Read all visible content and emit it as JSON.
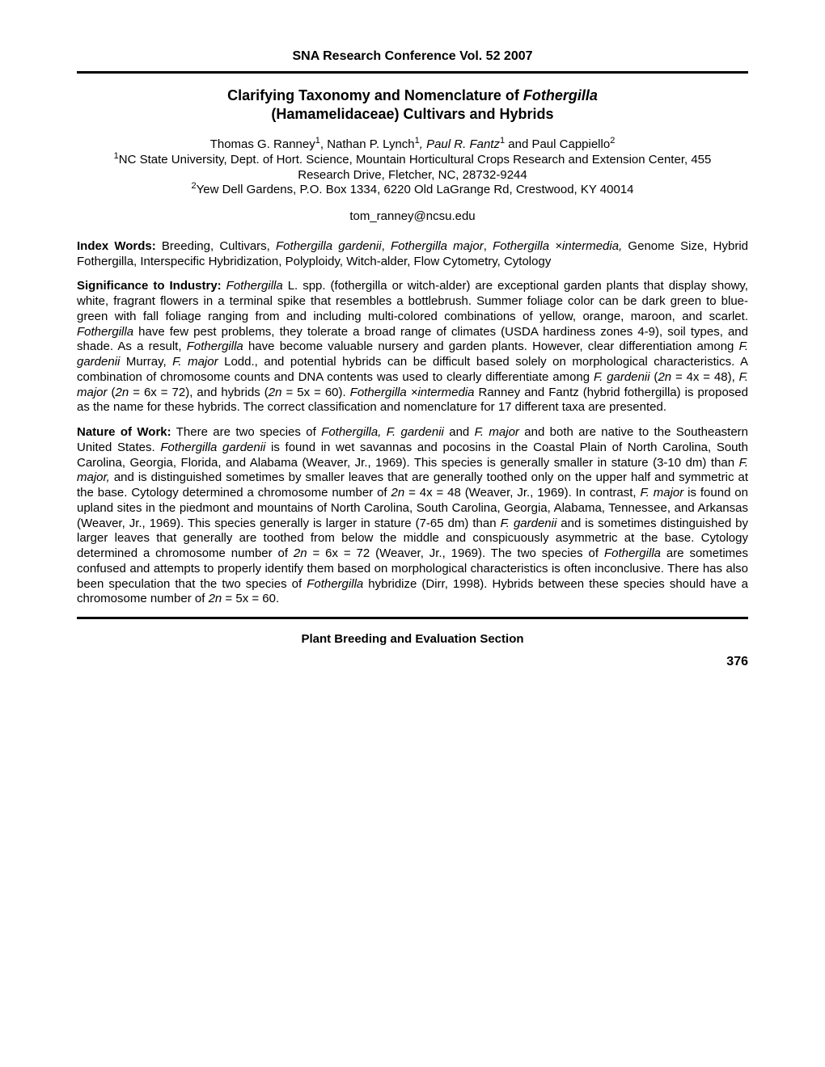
{
  "header": "SNA Research Conference Vol. 52 2007",
  "title_line1": "Clarifying Taxonomy and Nomenclature of ",
  "title_italic1": "Fothergilla",
  "title_line2": "(Hamamelidaceae) Cultivars and Hybrids",
  "authors_line": "Thomas G. Ranney",
  "authors_sup1": "1",
  "authors_mid1": ", Nathan P. Lynch",
  "authors_sup2": "1",
  "authors_mid2": ", Paul R. Fantz",
  "authors_sup3": "1",
  "authors_mid3": " and Paul Cappiello",
  "authors_sup4": "2",
  "affil1_sup": "1",
  "affil1": "NC State University, Dept. of Hort. Science, Mountain Horticultural Crops Research and Extension Center, 455 Research Drive, Fletcher, NC, 28732-9244",
  "affil2_sup": "2",
  "affil2": "Yew Dell Gardens, P.O. Box 1334, 6220 Old LaGrange Rd, Crestwood, KY 40014",
  "email": "tom_ranney@ncsu.edu",
  "index_label": "Index Words:",
  "index_text1": "  Breeding, Cultivars, ",
  "index_italic1": "Fothergilla gardenii",
  "index_text2": ", ",
  "index_italic2": "Fothergilla major",
  "index_text3": ", ",
  "index_italic3": "Fothergilla ×intermedia,",
  "index_text4": " Genome Size, Hybrid Fothergilla, Interspecific Hybridization, Polyploidy, Witch-alder, Flow Cytometry, Cytology",
  "sig_label": "Significance to Industry:",
  "sig_text1": "  ",
  "sig_italic1": "Fothergilla",
  "sig_text2": " L. spp. (fothergilla or witch-alder) are exceptional garden plants that display showy, white, fragrant flowers in a terminal spike that resembles a bottlebrush.  Summer foliage color can be dark green to blue-green with fall foliage ranging from and including multi-colored combinations of yellow, orange, maroon, and scarlet.  ",
  "sig_italic2": "Fothergilla",
  "sig_text3": " have few pest problems, they tolerate a broad range of climates (USDA hardiness zones 4-9), soil types, and shade.  As a result, ",
  "sig_italic3": "Fothergilla",
  "sig_text4": " have become valuable nursery and garden plants. However, clear differentiation among ",
  "sig_italic4": "F. gardenii",
  "sig_text5": " Murray, ",
  "sig_italic5": "F. major",
  "sig_text6": " Lodd., and potential hybrids can be difficult based solely on morphological characteristics.  A combination of chromosome counts and DNA contents was used to clearly differentiate among ",
  "sig_italic6": "F. gardenii",
  "sig_text7": " (",
  "sig_italic7": "2n",
  "sig_text8": " = 4x = 48), ",
  "sig_italic8": "F. major",
  "sig_text9": " (",
  "sig_italic9": "2n",
  "sig_text10": " = 6x = 72), and hybrids (",
  "sig_italic10": "2n",
  "sig_text11": " = 5x = 60).  ",
  "sig_italic11": "Fothergilla ×intermedia",
  "sig_text12": " Ranney and Fantz (hybrid fothergilla) is proposed as the name for these hybrids.  The correct classification and nomenclature for 17 different taxa are presented.",
  "nat_label": "Nature of Work:",
  "nat_text1": "  There are two species of ",
  "nat_italic1": "Fothergilla, F. gardenii ",
  "nat_text2": " and ",
  "nat_italic2": "F. major",
  "nat_text3": " and both are  native to the Southeastern United States.  ",
  "nat_italic3": "Fothergilla gardenii",
  "nat_text4": " is found in wet savannas and pocosins in the Coastal Plain of North Carolina, South Carolina, Georgia, Florida, and Alabama (Weaver, Jr., 1969).  This species is generally smaller in stature (3-10 dm) than ",
  "nat_italic4": "F. major,",
  "nat_text5": " and is distinguished sometimes by smaller leaves that are generally toothed only on the upper half and symmetric at the base.  Cytology determined a chromosome number of ",
  "nat_italic5": "2n",
  "nat_text6": " = 4x = 48 (Weaver, Jr., 1969).   In contrast, ",
  "nat_italic6": "F. major",
  "nat_text7": " is found on upland sites in the piedmont and mountains of North Carolina, South Carolina, Georgia, Alabama, Tennessee, and Arkansas (Weaver, Jr., 1969).  This species generally is larger in stature (7-65 dm) than ",
  "nat_italic7": "F. gardenii",
  "nat_text8": " and is sometimes distinguished by larger leaves that generally are toothed from below the middle and conspicuously asymmetric at the base.  Cytology determined a chromosome number of ",
  "nat_italic8": "2n",
  "nat_text9": " = 6x = 72 (Weaver, Jr., 1969).  The two species of ",
  "nat_italic9": "Fothergilla",
  "nat_text10": " are sometimes confused and attempts to properly identify them based on morphological characteristics is often inconclusive.  There has also been speculation that the two species of ",
  "nat_italic10": "Fothergilla",
  "nat_text11": " hybridize (Dirr, 1998).  Hybrids between these species should have a chromosome number of ",
  "nat_italic11": "2n",
  "nat_text12": " = 5x = 60.",
  "footer_section": "Plant Breeding and Evaluation Section",
  "page_number": "376"
}
